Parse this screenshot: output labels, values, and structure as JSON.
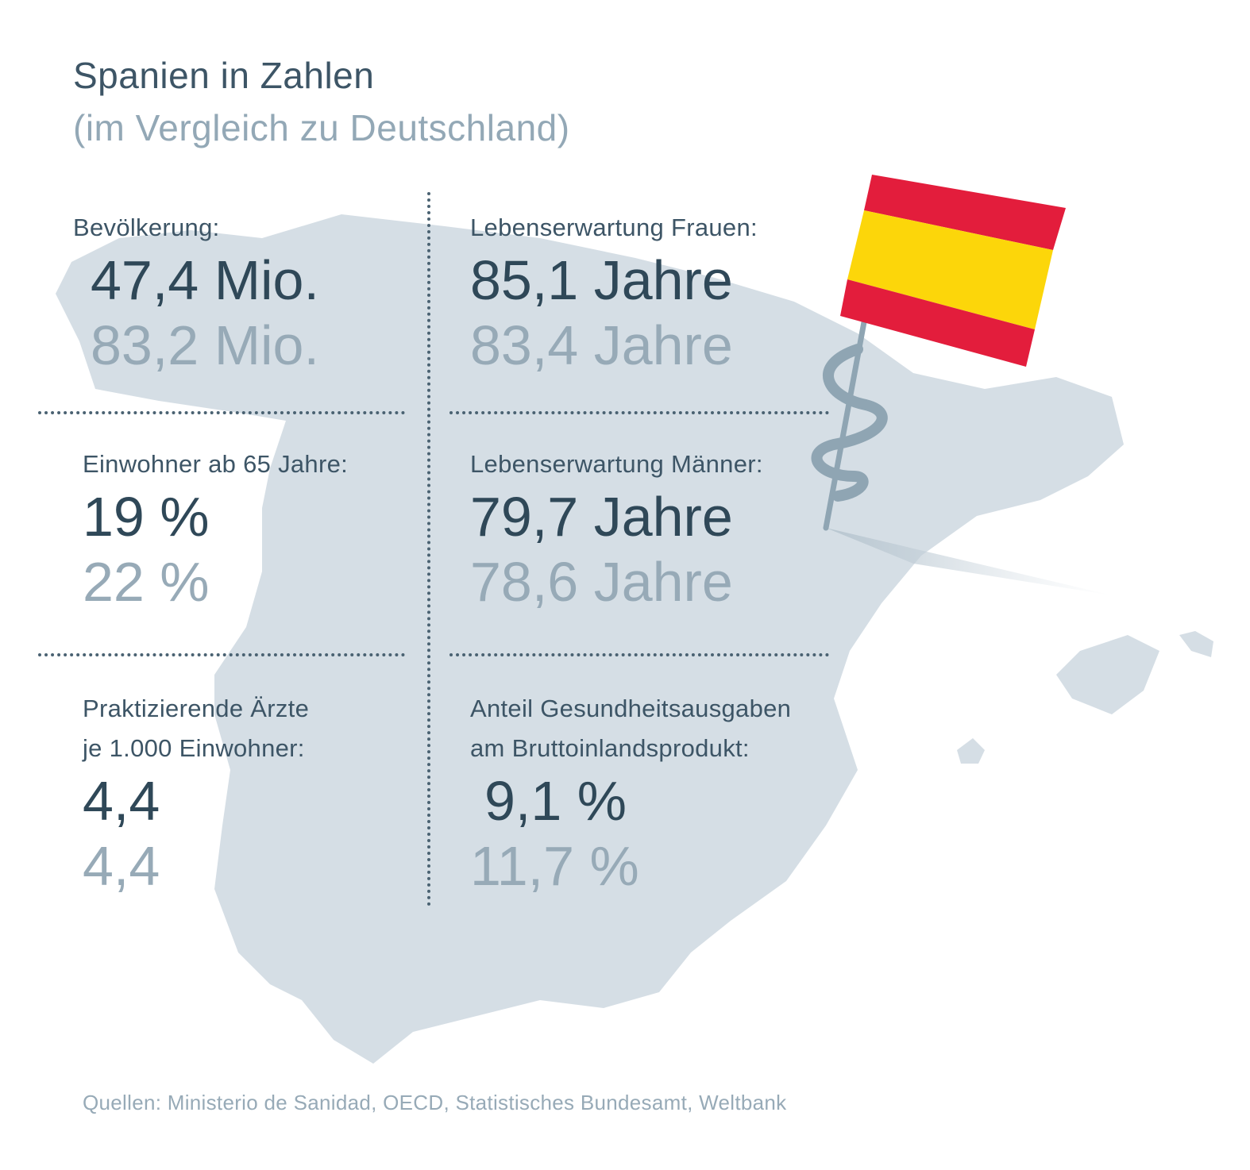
{
  "header": {
    "title": "Spanien in Zahlen",
    "subtitle": "(im Vergleich zu Deutschland)"
  },
  "stats": [
    {
      "label": "Bevölkerung:",
      "value_spain": "47,4 Mio.",
      "value_germany": "83,2 Mio."
    },
    {
      "label": "Lebenserwartung Frauen:",
      "value_spain": "85,1 Jahre",
      "value_germany": "83,4 Jahre"
    },
    {
      "label": "Einwohner ab 65 Jahre:",
      "value_spain": "19 %",
      "value_germany": "22 %"
    },
    {
      "label": "Lebenserwartung Männer:",
      "value_spain": "79,7 Jahre",
      "value_germany": "78,6 Jahre"
    },
    {
      "label_line1": "Praktizierende Ärzte",
      "label_line2": "je 1.000 Einwohner:",
      "value_spain": "4,4",
      "value_germany": "4,4"
    },
    {
      "label_line1": "Anteil Gesundheitsausgaben",
      "label_line2": "am Bruttoinlandsprodukt:",
      "value_spain": "9,1 %",
      "value_germany": "11,7 %"
    }
  ],
  "footer": {
    "source": "Quellen: Ministerio de Sanidad, OECD, Statistisches Bundesamt, Weltbank"
  },
  "colors": {
    "map_fill": "#d5dee5",
    "text_primary": "#2f4858",
    "text_secondary": "#97aab7",
    "flag_red": "#e31d3c",
    "flag_yellow": "#fcd60a",
    "pin": "#8fa5b3"
  },
  "icons": {
    "map": "spain-map-illustration",
    "flag": "spain-flag-pin-icon"
  }
}
